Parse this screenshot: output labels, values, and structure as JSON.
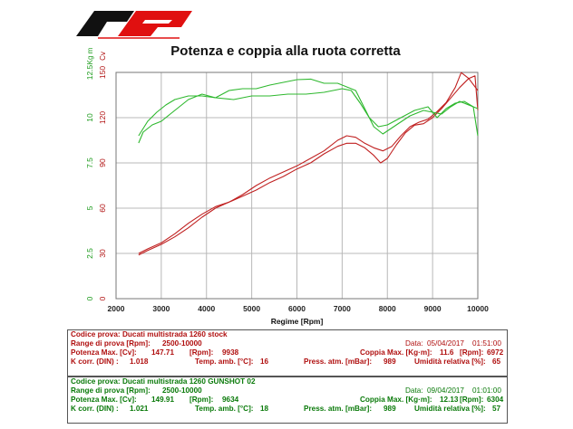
{
  "title": "Potenza e coppia alla ruota corretta",
  "colors": {
    "power_line": "#c02020",
    "torque_line": "#2eb82e",
    "grid": "#b8b8b8",
    "logo_red": "#e01010",
    "logo_black": "#111111"
  },
  "chart_data": {
    "type": "line",
    "xlabel": "Regime [Rpm]",
    "x_ticks": [
      "2000",
      "3000",
      "4000",
      "5000",
      "6000",
      "7000",
      "8000",
      "9000",
      "10000"
    ],
    "xlim": [
      2000,
      10000
    ],
    "ylabel_power": "Cv",
    "ylabel_torque": "Kg m",
    "power_ticks": [
      "0",
      "30",
      "60",
      "90",
      "120",
      "150"
    ],
    "power_lim": [
      0,
      150
    ],
    "torque_ticks": [
      "0",
      "2.5",
      "5",
      "7.5",
      "10",
      "12.5"
    ],
    "torque_lim": [
      0,
      12.5
    ],
    "grid": true,
    "series": [
      {
        "kind": "power",
        "x": [
          2500,
          2700,
          3000,
          3300,
          3600,
          3900,
          4200,
          4500,
          4800,
          5100,
          5400,
          5700,
          6000,
          6300,
          6600,
          6900,
          7100,
          7300,
          7500,
          7700,
          7850,
          8000,
          8200,
          8400,
          8600,
          8800,
          9000,
          9200,
          9400,
          9600,
          9800,
          9938,
          10000
        ],
        "y": [
          30,
          33,
          37,
          43,
          50,
          56,
          61,
          64,
          68,
          72,
          77,
          81,
          86,
          90,
          96,
          101,
          103,
          103,
          100,
          95,
          90,
          93,
          102,
          110,
          115,
          116,
          120,
          126,
          133,
          140,
          146,
          147.7,
          125
        ]
      },
      {
        "kind": "power",
        "x": [
          2500,
          2700,
          3000,
          3300,
          3600,
          3900,
          4200,
          4500,
          4800,
          5100,
          5400,
          5700,
          6000,
          6300,
          6600,
          6900,
          7100,
          7300,
          7500,
          7700,
          7900,
          8100,
          8300,
          8500,
          8700,
          8900,
          9100,
          9300,
          9500,
          9634,
          9800,
          10000
        ],
        "y": [
          29,
          32,
          36,
          41,
          47,
          54,
          60,
          64,
          69,
          75,
          80,
          84,
          88,
          93,
          98,
          105,
          108,
          107,
          103,
          100,
          98,
          101,
          108,
          114,
          117,
          119,
          124,
          130,
          140,
          149.9,
          146,
          138
        ]
      },
      {
        "kind": "torque",
        "x": [
          2500,
          2600,
          2800,
          3000,
          3200,
          3400,
          3600,
          3900,
          4200,
          4600,
          5000,
          5400,
          5800,
          6200,
          6600,
          7000,
          7200,
          7400,
          7600,
          7800,
          8000,
          8300,
          8600,
          8900,
          9100,
          9300,
          9500,
          9700,
          9900,
          10000
        ],
        "y": [
          8.6,
          9.2,
          9.6,
          9.8,
          10.2,
          10.6,
          11.0,
          11.3,
          11.1,
          11.0,
          11.2,
          11.2,
          11.3,
          11.3,
          11.4,
          11.6,
          11.5,
          10.8,
          10.0,
          9.5,
          9.6,
          10.0,
          10.4,
          10.6,
          10.0,
          10.5,
          10.8,
          10.9,
          10.6,
          9.0
        ]
      },
      {
        "kind": "torque",
        "x": [
          2500,
          2700,
          2900,
          3100,
          3300,
          3600,
          3900,
          4200,
          4500,
          4800,
          5100,
          5400,
          5800,
          6000,
          6304,
          6600,
          6900,
          7100,
          7300,
          7500,
          7700,
          7900,
          8200,
          8500,
          8800,
          9000,
          9200,
          9400,
          9600,
          9800,
          10000
        ],
        "y": [
          9.0,
          9.8,
          10.3,
          10.7,
          11.0,
          11.2,
          11.2,
          11.1,
          11.5,
          11.6,
          11.6,
          11.8,
          12.0,
          12.1,
          12.13,
          11.9,
          11.9,
          11.7,
          11.5,
          10.5,
          9.5,
          9.1,
          9.6,
          10.1,
          10.4,
          10.3,
          10.2,
          10.6,
          10.9,
          10.7,
          10.5
        ]
      }
    ]
  },
  "tests": [
    {
      "color": "red",
      "code_label": "Codice prova:",
      "code": "Ducati multistrada 1260 stock",
      "range_label": "Range di prova [Rpm]:",
      "range": "2500-10000",
      "date_label": "Data:",
      "date": "05/04/2017",
      "time": "01:51:00",
      "power_label": "Potenza Max. [Cv]:",
      "power": "147.71",
      "power_rpm_label": "[Rpm]:",
      "power_rpm": "9938",
      "torque_label": "Coppia Max. [Kg·m]:",
      "torque": "11.6",
      "torque_rpm_label": "[Rpm]:",
      "torque_rpm": "6972",
      "kcorr_label": "K corr. (DIN) :",
      "kcorr": "1.018",
      "temp_label": "Temp. amb. [°C]:",
      "temp": "16",
      "press_label": "Press. atm. [mBar]:",
      "press": "989",
      "hum_label": "Umidità relativa [%]:",
      "hum": "65"
    },
    {
      "color": "green",
      "code_label": "Codice prova:",
      "code": "Ducati multistrada 1260 GUNSHOT 02",
      "range_label": "Range di prova [Rpm]:",
      "range": "2500-10000",
      "date_label": "Data:",
      "date": "09/04/2017",
      "time": "01:01:00",
      "power_label": "Potenza Max. [Cv]:",
      "power": "149.91",
      "power_rpm_label": "[Rpm]:",
      "power_rpm": "9634",
      "torque_label": "Coppia Max. [Kg·m]:",
      "torque": "12.13",
      "torque_rpm_label": "[Rpm]:",
      "torque_rpm": "6304",
      "kcorr_label": "K corr. (DIN) :",
      "kcorr": "1.021",
      "temp_label": "Temp. amb. [°C]:",
      "temp": "18",
      "press_label": "Press. atm. [mBar]:",
      "press": "989",
      "hum_label": "Umidità relativa [%]:",
      "hum": "57"
    }
  ]
}
